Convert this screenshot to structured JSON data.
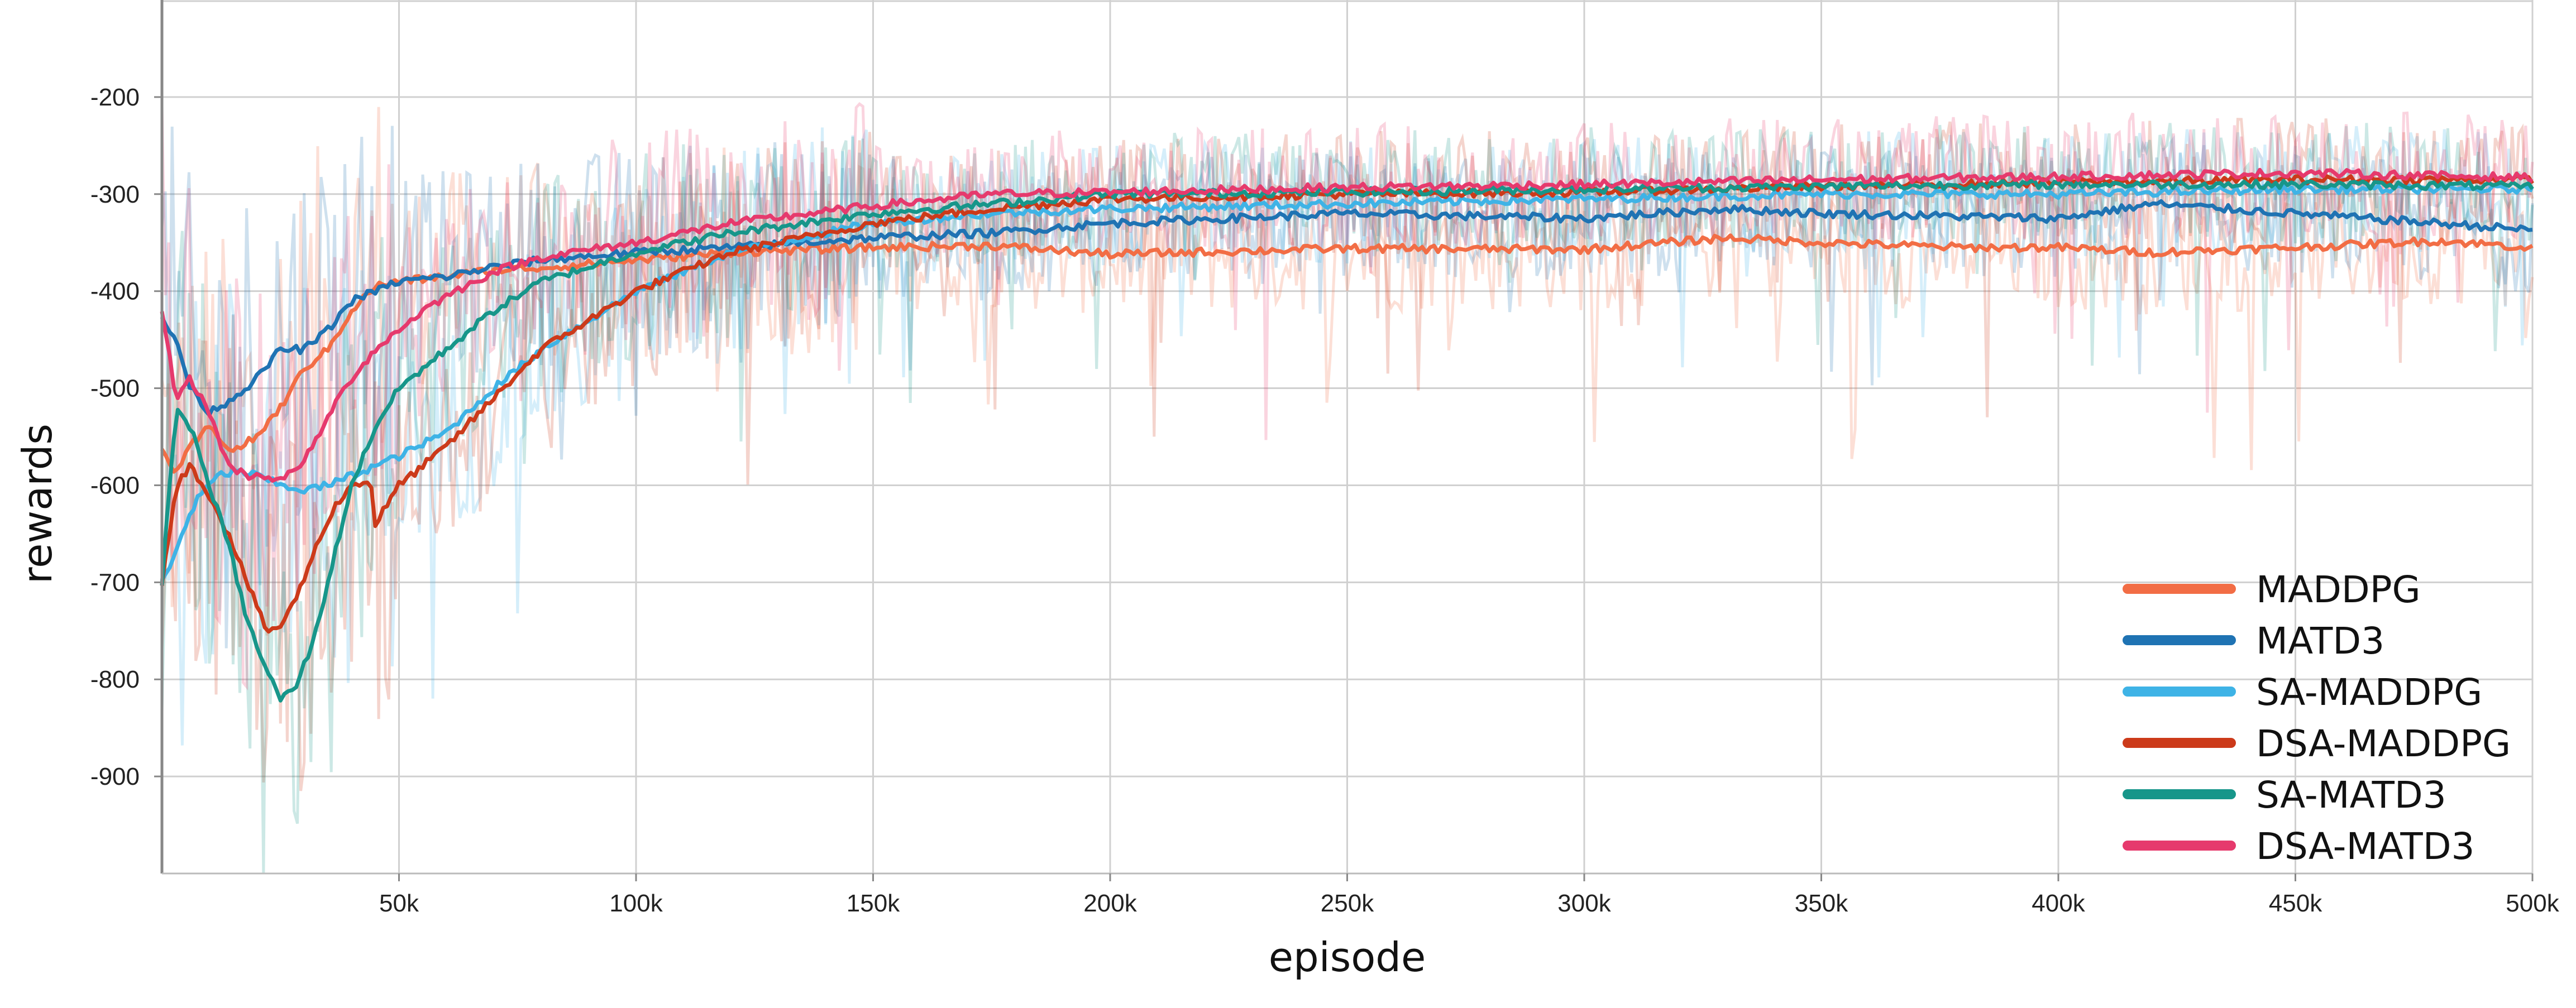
{
  "chart_data": {
    "type": "line",
    "title": "",
    "xlabel": "episode",
    "ylabel": "rewards",
    "xlim": [
      0,
      500000
    ],
    "ylim": [
      -1000,
      -100
    ],
    "grid": true,
    "legend_placement": "bottom-right",
    "x_ticks": [
      {
        "value": 50000,
        "label": "50k"
      },
      {
        "value": 100000,
        "label": "100k"
      },
      {
        "value": 150000,
        "label": "150k"
      },
      {
        "value": 200000,
        "label": "200k"
      },
      {
        "value": 250000,
        "label": "250k"
      },
      {
        "value": 300000,
        "label": "300k"
      },
      {
        "value": 350000,
        "label": "350k"
      },
      {
        "value": 400000,
        "label": "400k"
      },
      {
        "value": 450000,
        "label": "450k"
      },
      {
        "value": 500000,
        "label": "500k"
      }
    ],
    "y_ticks": [
      {
        "value": -200,
        "label": "-200"
      },
      {
        "value": -300,
        "label": "-300"
      },
      {
        "value": -400,
        "label": "-400"
      },
      {
        "value": -500,
        "label": "-500"
      },
      {
        "value": -600,
        "label": "-600"
      },
      {
        "value": -700,
        "label": "-700"
      },
      {
        "value": -800,
        "label": "-800"
      },
      {
        "value": -900,
        "label": "-900"
      }
    ],
    "series": [
      {
        "name": "MADDPG",
        "color": "#f26d45",
        "x": [
          0,
          3000,
          6000,
          10000,
          15000,
          20000,
          25000,
          30000,
          35000,
          40000,
          45000,
          50000,
          60000,
          70000,
          80000,
          100000,
          120000,
          150000,
          175000,
          200000,
          250000,
          300000,
          330000,
          350000,
          380000,
          400000,
          420000,
          450000,
          480000,
          500000
        ],
        "values": [
          -560,
          -590,
          -560,
          -540,
          -565,
          -550,
          -520,
          -480,
          -460,
          -420,
          -395,
          -390,
          -385,
          -378,
          -376,
          -368,
          -360,
          -355,
          -353,
          -362,
          -356,
          -357,
          -345,
          -350,
          -355,
          -355,
          -360,
          -355,
          -348,
          -355
        ]
      },
      {
        "name": "MATD3",
        "color": "#1f73b3",
        "x": [
          0,
          3000,
          6000,
          10000,
          15000,
          20000,
          25000,
          30000,
          35000,
          40000,
          50000,
          60000,
          70000,
          80000,
          100000,
          120000,
          150000,
          175000,
          200000,
          250000,
          300000,
          330000,
          350000,
          400000,
          420000,
          450000,
          480000,
          500000
        ],
        "values": [
          -430,
          -450,
          -500,
          -525,
          -510,
          -490,
          -460,
          -460,
          -440,
          -410,
          -390,
          -385,
          -375,
          -368,
          -360,
          -355,
          -345,
          -340,
          -330,
          -320,
          -325,
          -315,
          -320,
          -325,
          -310,
          -320,
          -330,
          -337
        ]
      },
      {
        "name": "SA-MADDPG",
        "color": "#3eb3e6",
        "x": [
          0,
          2000,
          5000,
          8000,
          12000,
          16000,
          20000,
          25000,
          30000,
          35000,
          40000,
          45000,
          50000,
          60000,
          70000,
          80000,
          100000,
          120000,
          150000,
          175000,
          200000,
          250000,
          300000,
          350000,
          400000,
          450000,
          500000
        ],
        "values": [
          -700,
          -680,
          -640,
          -610,
          -590,
          -585,
          -590,
          -600,
          -605,
          -600,
          -590,
          -580,
          -570,
          -545,
          -500,
          -460,
          -400,
          -360,
          -330,
          -320,
          -315,
          -310,
          -305,
          -300,
          -300,
          -295,
          -295
        ]
      },
      {
        "name": "DSA-MADDPG",
        "color": "#cc3a1a",
        "x": [
          0,
          3000,
          6000,
          10000,
          14000,
          18000,
          22000,
          25000,
          28000,
          32000,
          36000,
          40000,
          44000,
          45000,
          50000,
          55000,
          60000,
          70000,
          80000,
          100000,
          120000,
          150000,
          175000,
          200000,
          250000,
          300000,
          350000,
          400000,
          450000,
          500000
        ],
        "values": [
          -700,
          -600,
          -580,
          -610,
          -650,
          -700,
          -750,
          -745,
          -720,
          -670,
          -625,
          -600,
          -595,
          -640,
          -600,
          -580,
          -560,
          -510,
          -460,
          -400,
          -360,
          -330,
          -315,
          -305,
          -300,
          -298,
          -292,
          -288,
          -285,
          -285
        ]
      },
      {
        "name": "SA-MATD3",
        "color": "#17968a",
        "x": [
          0,
          3000,
          6000,
          10000,
          14000,
          18000,
          22000,
          25000,
          28000,
          32000,
          36000,
          40000,
          45000,
          50000,
          60000,
          70000,
          80000,
          100000,
          120000,
          150000,
          175000,
          200000,
          250000,
          300000,
          350000,
          400000,
          450000,
          500000
        ],
        "values": [
          -700,
          -520,
          -540,
          -600,
          -660,
          -740,
          -790,
          -820,
          -810,
          -760,
          -680,
          -600,
          -540,
          -500,
          -460,
          -420,
          -390,
          -360,
          -340,
          -320,
          -310,
          -300,
          -298,
          -295,
          -292,
          -290,
          -290,
          -292
        ]
      },
      {
        "name": "DSA-MATD3",
        "color": "#e63a6d",
        "x": [
          0,
          3000,
          6000,
          10000,
          14000,
          18000,
          22000,
          25000,
          28000,
          32000,
          36000,
          40000,
          45000,
          50000,
          55000,
          60000,
          70000,
          80000,
          100000,
          120000,
          150000,
          175000,
          200000,
          250000,
          300000,
          350000,
          400000,
          450000,
          500000
        ],
        "values": [
          -420,
          -510,
          -490,
          -525,
          -580,
          -590,
          -590,
          -595,
          -585,
          -560,
          -520,
          -490,
          -460,
          -440,
          -420,
          -405,
          -380,
          -365,
          -350,
          -330,
          -312,
          -300,
          -298,
          -293,
          -290,
          -285,
          -282,
          -278,
          -283
        ]
      }
    ]
  }
}
